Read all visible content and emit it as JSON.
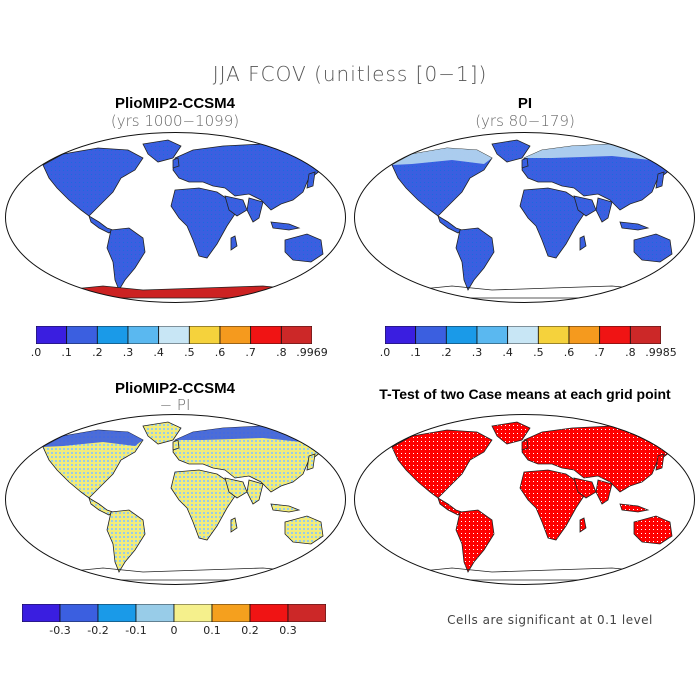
{
  "title": "JJA FCOV (unitless [0−1])",
  "panels": [
    {
      "id": "tl",
      "title": "PlioMIP2-CCSM4",
      "subtitle": "(yrs 1000−1099)",
      "fill": "#3b5fe0",
      "antarctic": "#cc2222",
      "arctic": "none"
    },
    {
      "id": "tr",
      "title": "PI",
      "subtitle": "(yrs 80−179)",
      "fill": "#3b5fe0",
      "antarctic": "none",
      "arctic": "#b8d8f0"
    },
    {
      "id": "bl",
      "title": "PlioMIP2-CCSM4",
      "subtitle": "− PI",
      "fill": "#f2ec7a",
      "antarctic": "none",
      "arctic": "#3b5fe0"
    },
    {
      "id": "br",
      "title": "T-Test of two Case means at each grid point",
      "subtitle": "",
      "fill": "#ff0000",
      "antarctic": "none",
      "arctic": "none"
    }
  ],
  "colorbars": [
    {
      "id": "cb1",
      "colors": [
        "#3a1ee0",
        "#3b5fe0",
        "#1a9ae8",
        "#5ab8f0",
        "#c8e6f5",
        "#f5d23c",
        "#f59a1e",
        "#f01414",
        "#cc2828"
      ],
      "labels": [
        ".0",
        ".1",
        ".2",
        ".3",
        ".4",
        ".5",
        ".6",
        ".7",
        ".8",
        ".9969"
      ]
    },
    {
      "id": "cb2",
      "colors": [
        "#3a1ee0",
        "#3b5fe0",
        "#1a9ae8",
        "#5ab8f0",
        "#c8e6f5",
        "#f5d23c",
        "#f59a1e",
        "#f01414",
        "#cc2828"
      ],
      "labels": [
        ".0",
        ".1",
        ".2",
        ".3",
        ".4",
        ".5",
        ".6",
        ".7",
        ".8",
        ".9985"
      ]
    },
    {
      "id": "cb3",
      "colors": [
        "#3a1ee0",
        "#3b5fe0",
        "#1a9ae8",
        "#98cce8",
        "#f5f08c",
        "#f5a01e",
        "#f01414",
        "#cc2828"
      ],
      "labels": [
        "-0.3",
        "-0.2",
        "-0.1",
        "0",
        "0.1",
        "0.2",
        "0.3"
      ]
    }
  ],
  "note": "Cells are significant at 0.1 level"
}
